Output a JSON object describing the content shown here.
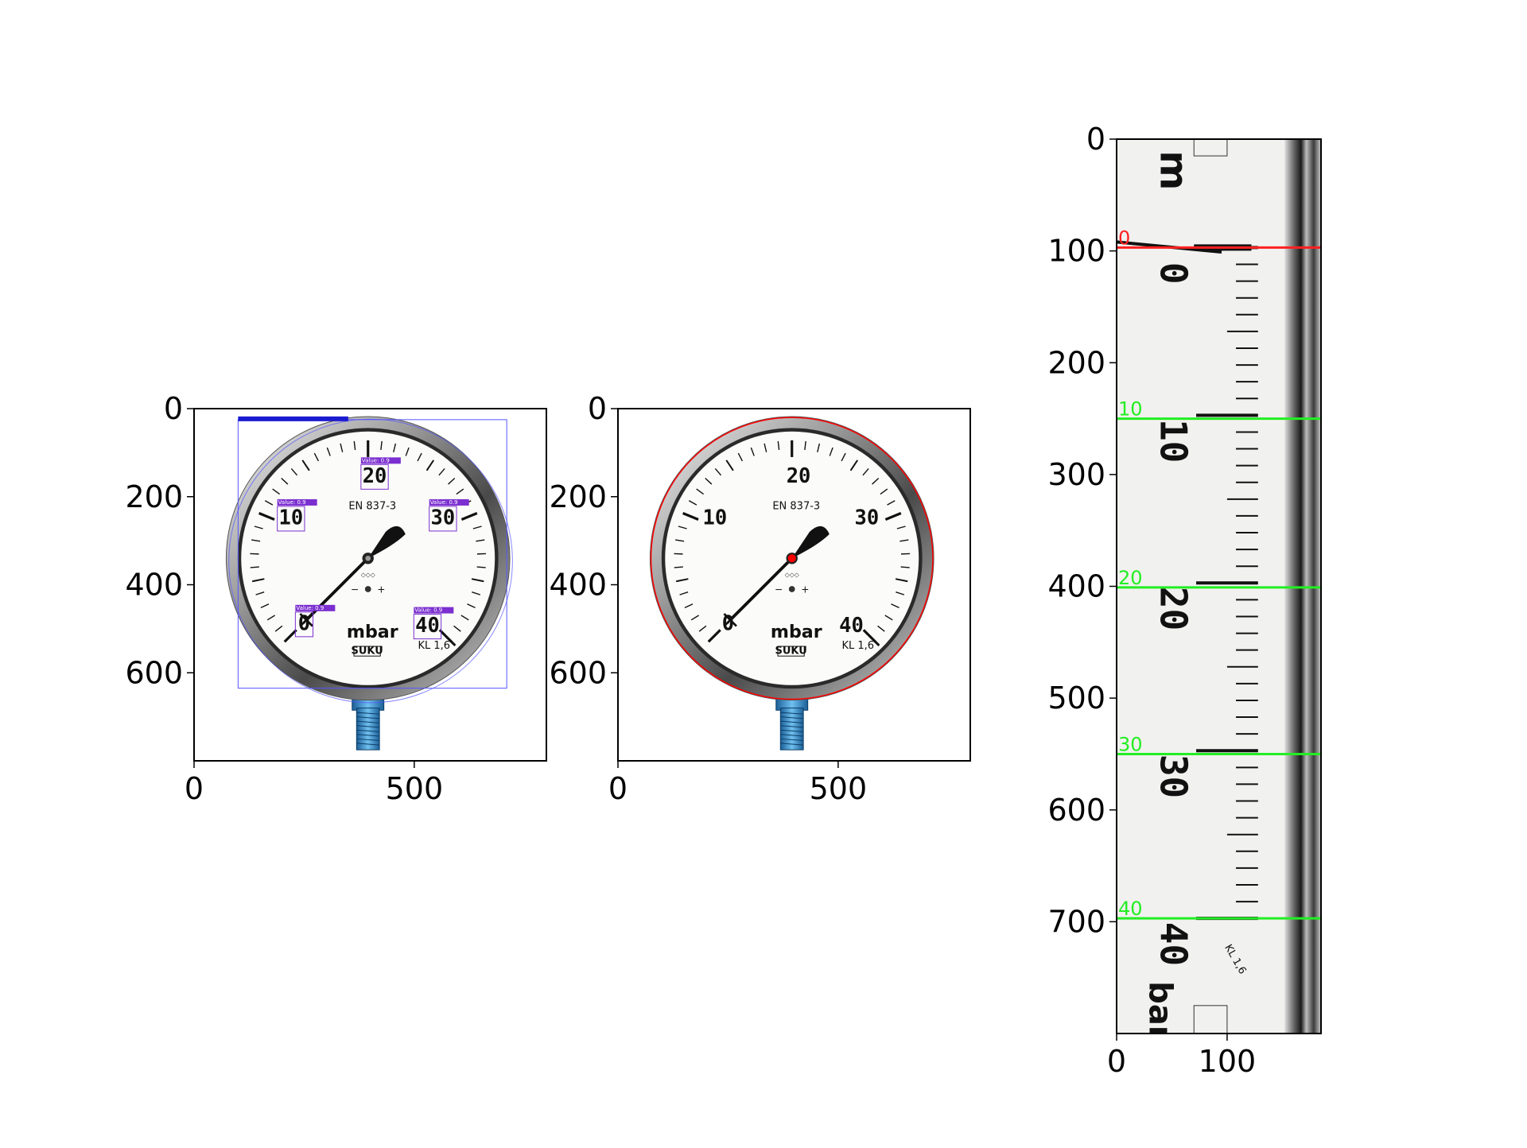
{
  "gauge": {
    "unit": "mbar",
    "standard": "EN 837-3",
    "brand": "SUKU",
    "accuracy_class": "KL 1,6",
    "scale_numbers": [
      "0",
      "10",
      "20",
      "30",
      "40"
    ],
    "detection_label": "Value: 0.9"
  },
  "colors": {
    "detection_box": "#7b2fd0",
    "gauge_box": "#5555ff",
    "title_bar": "#1a1ad0",
    "circle_fit": "#ff0000",
    "zero_line": "#ff2020",
    "mark_line": "#22ee22"
  },
  "chart_data": [
    {
      "type": "image",
      "panel": "detections",
      "xlim": [
        0,
        800
      ],
      "ylim": [
        800,
        0
      ],
      "xticks": [
        "0",
        "500"
      ],
      "yticks": [
        "0",
        "200",
        "400",
        "600"
      ],
      "detections": [
        {
          "label": "20",
          "text": "Value: 0.9"
        },
        {
          "label": "10",
          "text": "Value: 0.9"
        },
        {
          "label": "30",
          "text": "Value: 0.9"
        },
        {
          "label": "0",
          "text": "Value: 0.9"
        },
        {
          "label": "40",
          "text": "Value: 0.9"
        }
      ],
      "gauge_box": {
        "x0": 100,
        "y0": 25,
        "x1": 710,
        "y1": 635
      }
    },
    {
      "type": "image",
      "panel": "circle-fit",
      "xlim": [
        0,
        800
      ],
      "ylim": [
        800,
        0
      ],
      "xticks": [
        "0",
        "500"
      ],
      "yticks": [
        "0",
        "200",
        "400",
        "600"
      ],
      "circle": {
        "cx": 395,
        "cy": 340,
        "r": 320
      }
    },
    {
      "type": "image",
      "panel": "unwrapped-scale",
      "xlim": [
        0,
        185
      ],
      "ylim": [
        800,
        0
      ],
      "xticks": [
        "0",
        "100"
      ],
      "yticks": [
        "0",
        "100",
        "200",
        "300",
        "400",
        "500",
        "600",
        "700"
      ],
      "lines": [
        {
          "label": "0",
          "y": 97,
          "color": "#ff2020"
        },
        {
          "label": "10",
          "y": 250,
          "color": "#22ee22"
        },
        {
          "label": "20",
          "y": 401,
          "color": "#22ee22"
        },
        {
          "label": "30",
          "y": 550,
          "color": "#22ee22"
        },
        {
          "label": "40",
          "y": 697,
          "color": "#22ee22"
        }
      ]
    }
  ]
}
